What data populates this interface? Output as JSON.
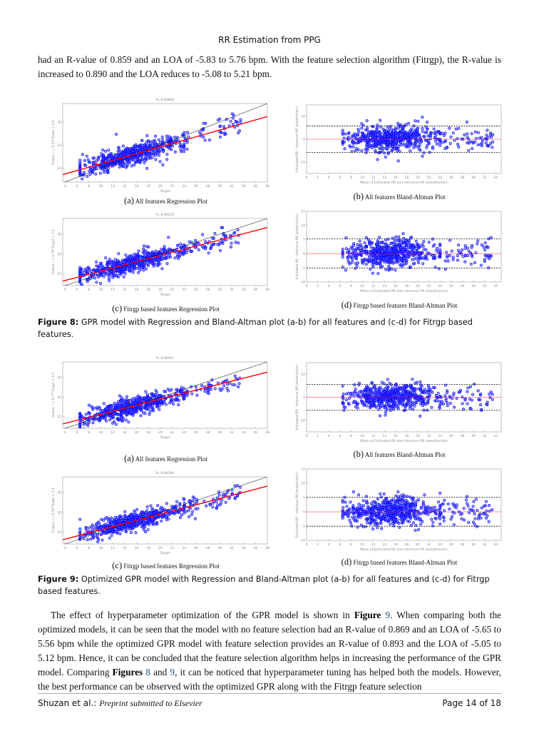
{
  "header": {
    "running_title": "RR Estimation from PPG"
  },
  "intro_paragraph": "had an R-value of 0.859 and an LOA of -5.83 to 5.76 bpm. With the feature selection algorithm (Fitrgp), the R-value is increased to 0.890 and the LOA reduces to -5.08 to 5.21 bpm.",
  "figure8": {
    "label": "Figure 8:",
    "caption": "GPR model with Regression and Bland-Altman plot (a-b) for all features and (c-d) for Fitrgp based features.",
    "subcaptions": [
      {
        "label": "(a)",
        "text": "All features Regression Plot"
      },
      {
        "label": "(b)",
        "text": "All features Bland-Altman Plot"
      },
      {
        "label": "(c)",
        "text": "Fitrgp based features Regression Plot"
      },
      {
        "label": "(d)",
        "text": "Fitrgp based features Bland-Altman Plot"
      }
    ]
  },
  "figure9": {
    "label": "Figure 9:",
    "caption": "Optimized GPR model with Regression and Bland-Altman plot (a-b) for all features and (c-d) for Fitrgp based features.",
    "subcaptions": [
      {
        "label": "(a)",
        "text": "All features Regression Plot"
      },
      {
        "label": "(b)",
        "text": "All features Bland-Altman Plot"
      },
      {
        "label": "(c)",
        "text": "Fitrgp based features Regression Plot"
      },
      {
        "label": "(d)",
        "text": "Fitrgp based features Bland-Altman Plot"
      }
    ]
  },
  "body_paragraph": {
    "p1": "The effect of hyperparameter optimization of the GPR model is shown in ",
    "fig_word": "Figure",
    "fig9": "9",
    "p2": ". When comparing both the optimized models, it can be seen that the model with no feature selection had an R-value of 0.869 and an LOA of -5.65 to 5.56 bpm while the optimized GPR model with feature selection provides an R-value of 0.893 and the LOA of -5.05 to 5.12 bpm. Hence, it can be concluded that the feature selection algorithm helps in increasing the performance of the GPR model. Comparing ",
    "figs_word": "Figures",
    "fig8": "8",
    "and": " and ",
    "p3": ", it can be noticed that hyperparameter tuning has helped both the models. However, the best performance can be observed with the optimized GPR along with the Fitrgp feature selection"
  },
  "footer": {
    "authors": "Shuzan et al.:",
    "venue": "Preprint submitted to Elsevier",
    "page": "Page 14 of 18"
  },
  "colors": {
    "points": "#0000ff",
    "fit_line": "#ff0000",
    "identity_line": "#000000",
    "mean_line": "#ff0000",
    "loa_lines": "#000000",
    "axis_text": "#888888"
  },
  "chart_data": [
    {
      "id": "fig8a",
      "type": "scatter",
      "title": "R=0.85888",
      "xlabel": "Target",
      "ylabel": "Output ~= 0.73*Target + 4.6",
      "xlim": [
        3.6,
        38
      ],
      "ylim": [
        4,
        38
      ],
      "xticks": [
        4,
        6,
        8,
        10,
        12,
        14,
        16,
        18,
        20,
        22,
        24,
        26,
        28,
        30,
        32,
        34,
        36,
        38
      ],
      "yticks": [
        10,
        20,
        30
      ],
      "fit": {
        "slope": 0.73,
        "intercept": 4.6
      },
      "identity_line": true,
      "grid": false
    },
    {
      "id": "fig8b",
      "type": "scatter",
      "title": "",
      "xlabel": "Mean of Estimated RR and reference RR (breaths/min)",
      "ylabel": "Estimated RR - reference RR (breaths/min)",
      "xlim": [
        0,
        35
      ],
      "ylim": [
        -15,
        15
      ],
      "xticks": [
        0,
        2,
        4,
        6,
        8,
        10,
        12,
        14,
        16,
        18,
        20,
        22,
        24,
        26,
        28,
        30,
        32,
        34
      ],
      "yticks": [
        -10,
        0,
        10
      ],
      "mean_line": 0,
      "loa": [
        -5.83,
        5.76
      ],
      "grid": false
    },
    {
      "id": "fig8c",
      "type": "scatter",
      "title": "R=0.89016",
      "xlabel": "Target",
      "ylabel": "Output ~= 0.79*Target + 3.4",
      "xlim": [
        3.6,
        38
      ],
      "ylim": [
        4,
        38
      ],
      "xticks": [
        4,
        6,
        8,
        10,
        12,
        14,
        16,
        18,
        20,
        22,
        24,
        26,
        28,
        30,
        32,
        34,
        36,
        38
      ],
      "yticks": [
        10,
        20,
        30
      ],
      "fit": {
        "slope": 0.79,
        "intercept": 3.4
      },
      "identity_line": true,
      "grid": false
    },
    {
      "id": "fig8d",
      "type": "scatter",
      "title": "",
      "xlabel": "Mean of Estimated RR and reference RR (breaths/min)",
      "ylabel": "Estimated RR - reference RR (breaths/min)",
      "xlim": [
        0,
        35
      ],
      "ylim": [
        -10,
        15
      ],
      "xticks": [
        0,
        2,
        4,
        6,
        8,
        10,
        12,
        14,
        16,
        18,
        20,
        22,
        24,
        26,
        28,
        30,
        32,
        34
      ],
      "yticks": [
        -10,
        -5,
        0,
        5,
        10,
        15
      ],
      "mean_line": 0,
      "loa": [
        -5.08,
        5.21
      ],
      "grid": false
    },
    {
      "id": "fig9a",
      "type": "scatter",
      "title": "R=0.86907",
      "xlabel": "Target",
      "ylabel": "Output ~= 0.77*Target + 3.5",
      "xlim": [
        3.6,
        38
      ],
      "ylim": [
        4,
        38
      ],
      "xticks": [
        4,
        6,
        8,
        10,
        12,
        14,
        16,
        18,
        20,
        22,
        24,
        26,
        28,
        30,
        32,
        34,
        36,
        38
      ],
      "yticks": [
        10,
        20,
        30
      ],
      "fit": {
        "slope": 0.77,
        "intercept": 3.5
      },
      "identity_line": true,
      "grid": false
    },
    {
      "id": "fig9b",
      "type": "scatter",
      "title": "",
      "xlabel": "Mean of Estimated RR and reference RR (breaths/min)",
      "ylabel": "Estimated RR - reference RR (breaths/min)",
      "xlim": [
        0,
        35
      ],
      "ylim": [
        -15,
        15
      ],
      "xticks": [
        0,
        2,
        4,
        6,
        8,
        10,
        12,
        14,
        16,
        18,
        20,
        22,
        24,
        26,
        28,
        30,
        32,
        34
      ],
      "yticks": [
        -10,
        0,
        10
      ],
      "mean_line": 0,
      "loa": [
        -5.65,
        5.56
      ],
      "grid": false
    },
    {
      "id": "fig9c",
      "type": "scatter",
      "title": "R=0.89309",
      "xlabel": "Target",
      "ylabel": "Output ~= 0.79*Target + 3.3",
      "xlim": [
        3.6,
        38
      ],
      "ylim": [
        4,
        38
      ],
      "xticks": [
        4,
        6,
        8,
        10,
        12,
        14,
        16,
        18,
        20,
        22,
        24,
        26,
        28,
        30,
        32,
        34,
        36,
        38
      ],
      "yticks": [
        10,
        20,
        30
      ],
      "fit": {
        "slope": 0.79,
        "intercept": 3.3
      },
      "identity_line": true,
      "grid": false
    },
    {
      "id": "fig9d",
      "type": "scatter",
      "title": "",
      "xlabel": "Mean of Estimated RR and reference RR (breaths/min)",
      "ylabel": "Estimated RR - reference RR (breaths/min)",
      "xlim": [
        0,
        35
      ],
      "ylim": [
        -10,
        15
      ],
      "xticks": [
        0,
        2,
        4,
        6,
        8,
        10,
        12,
        14,
        16,
        18,
        20,
        22,
        24,
        26,
        28,
        30,
        32,
        34
      ],
      "yticks": [
        -10,
        -5,
        0,
        5,
        10,
        15
      ],
      "mean_line": 0,
      "loa": [
        -5.05,
        5.12
      ],
      "grid": false
    }
  ]
}
